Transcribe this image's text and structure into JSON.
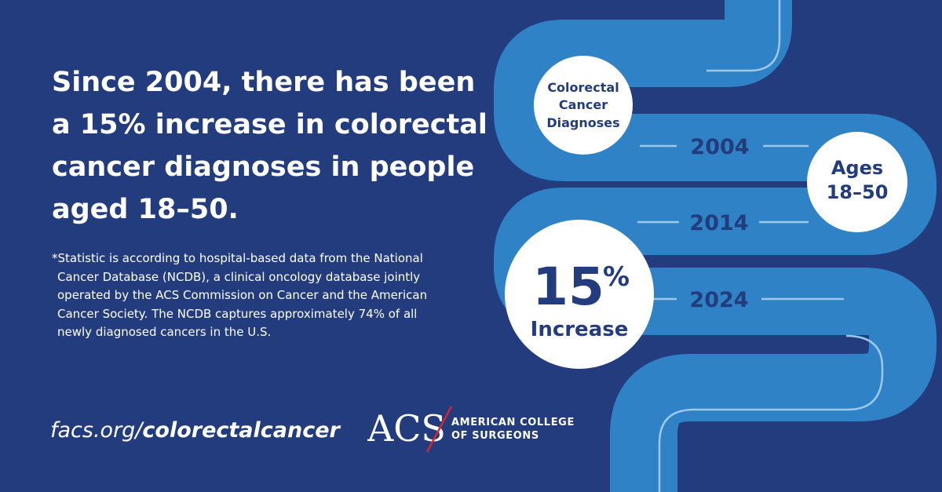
{
  "headline": {
    "lines": [
      "Since 2004, there has been",
      "a 15% increase in colorectal",
      "cancer diagnoses in people",
      "aged 18–50."
    ]
  },
  "footnote": {
    "lines": [
      "*Statistic is according to hospital-based data from the National",
      "Cancer Database (NCDB), a clinical oncology database jointly",
      "operated by the ACS Commission on Cancer and the American",
      "Cancer Society. The NCDB captures approximately 74% of all",
      "newly diagnosed cancers in the U.S."
    ]
  },
  "url": {
    "prefix": "facs.org/",
    "path": "colorectalcancer"
  },
  "logo": {
    "mark": "ACS",
    "line1": "AMERICAN COLLEGE",
    "line2": "OF SURGEONS"
  },
  "graphic": {
    "circle_diagnoses": [
      "Colorectal",
      "Cancer",
      "Diagnoses"
    ],
    "circle_ages": [
      "Ages",
      "18–50"
    ],
    "circle_increase": {
      "number": "15",
      "symbol": "%",
      "label": "Increase"
    },
    "years": [
      "2004",
      "2014",
      "2024"
    ]
  },
  "colors": {
    "background": "#233c7d",
    "tube": "#2e82c5",
    "tube_line": "#9cc8ec",
    "circle": "#ffffff",
    "text_dark": "#233c7d",
    "logo_slash": "#d7262e"
  }
}
